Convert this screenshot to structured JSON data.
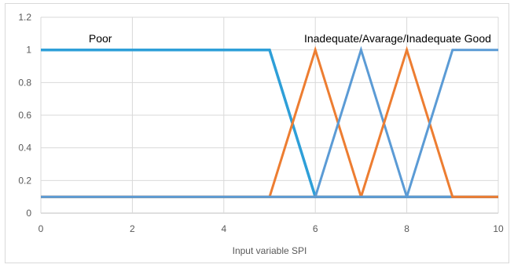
{
  "chart_data": {
    "type": "line",
    "title": "",
    "xlabel": "Input variable SPI",
    "ylabel": "",
    "xlim": [
      0,
      10
    ],
    "ylim": [
      0,
      1.2
    ],
    "x_ticks": [
      0,
      2,
      4,
      6,
      8,
      10
    ],
    "y_ticks": [
      0,
      0.2,
      0.4,
      0.6,
      0.8,
      1,
      1.2
    ],
    "grid": true,
    "legend": "none",
    "annotations": [
      {
        "text": "Poor",
        "x": 1.3,
        "y": 1.07
      },
      {
        "text": "Inadequate/Avarage/Inadequate Good",
        "x": 7.8,
        "y": 1.07
      }
    ],
    "series": [
      {
        "color": "#2e9fd8",
        "x": [
          0,
          4.9,
          5.0,
          6,
          10
        ],
        "y": [
          1,
          1,
          1,
          0.1,
          0.1
        ]
      },
      {
        "color": "#ed7d31",
        "x": [
          0,
          5,
          6,
          7,
          10
        ],
        "y": [
          0.1,
          0.1,
          1,
          0.1,
          0.1
        ]
      },
      {
        "color": "#5b9bd5",
        "x": [
          0,
          6,
          7,
          8,
          10
        ],
        "y": [
          0.1,
          0.1,
          1,
          0.1,
          0.1
        ]
      },
      {
        "color": "#ed7d31",
        "x": [
          0,
          7,
          8,
          9,
          10
        ],
        "y": [
          0.1,
          0.1,
          1,
          0.1,
          0.1
        ]
      },
      {
        "color": "#5b9bd5",
        "x": [
          0,
          8,
          9,
          10
        ],
        "y": [
          0.1,
          0.1,
          1,
          1
        ]
      }
    ]
  }
}
